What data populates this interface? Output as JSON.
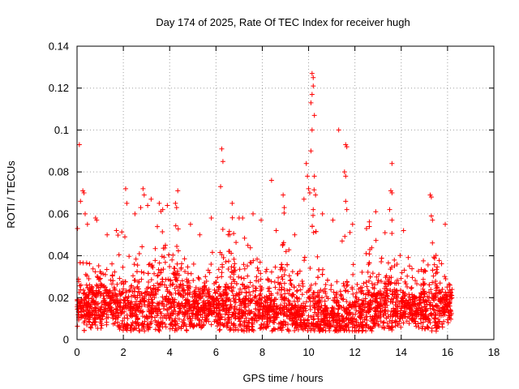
{
  "chart_data": {
    "type": "scatter",
    "title": "Day 174 of 2025, Rate Of TEC Index for receiver hugh",
    "xlabel": "GPS time / hours",
    "ylabel": "ROTI / TECUs",
    "xlim": [
      0,
      18
    ],
    "ylim": [
      0,
      0.14
    ],
    "xticks": [
      0,
      2,
      4,
      6,
      8,
      10,
      12,
      14,
      16,
      18
    ],
    "yticks": [
      0,
      0.02,
      0.04,
      0.06,
      0.08,
      0.1,
      0.12,
      0.14
    ],
    "xtick_labels": [
      "0",
      "2",
      "4",
      "6",
      "8",
      "10",
      "12",
      "14",
      "16",
      "18"
    ],
    "ytick_labels": [
      "0",
      "0.02",
      "0.04",
      "0.06",
      "0.08",
      "0.1",
      "0.12",
      "0.14"
    ],
    "grid": true,
    "marker": "+",
    "marker_color": "#ff0000",
    "data_range_x": [
      0,
      16.2
    ],
    "series": [
      {
        "name": "ROTI",
        "points": [
          [
            0.02,
            0.053
          ],
          [
            0.1,
            0.093
          ],
          [
            0.15,
            0.066
          ],
          [
            0.25,
            0.071
          ],
          [
            0.3,
            0.07
          ],
          [
            0.35,
            0.06
          ],
          [
            0.45,
            0.055
          ],
          [
            0.8,
            0.058
          ],
          [
            0.85,
            0.057
          ],
          [
            1.3,
            0.05
          ],
          [
            1.7,
            0.052
          ],
          [
            2.1,
            0.072
          ],
          [
            2.15,
            0.065
          ],
          [
            2.5,
            0.06
          ],
          [
            2.75,
            0.063
          ],
          [
            2.85,
            0.072
          ],
          [
            2.9,
            0.069
          ],
          [
            3.05,
            0.064
          ],
          [
            3.2,
            0.067
          ],
          [
            3.55,
            0.065
          ],
          [
            3.7,
            0.062
          ],
          [
            3.9,
            0.064
          ],
          [
            4.25,
            0.065
          ],
          [
            4.3,
            0.063
          ],
          [
            4.35,
            0.071
          ],
          [
            4.9,
            0.055
          ],
          [
            5.3,
            0.05
          ],
          [
            5.8,
            0.058
          ],
          [
            6.2,
            0.073
          ],
          [
            6.25,
            0.091
          ],
          [
            6.3,
            0.085
          ],
          [
            6.7,
            0.065
          ],
          [
            7.0,
            0.058
          ],
          [
            7.15,
            0.058
          ],
          [
            7.6,
            0.06
          ],
          [
            7.95,
            0.057
          ],
          [
            8.4,
            0.076
          ],
          [
            8.6,
            0.052
          ],
          [
            8.9,
            0.069
          ],
          [
            8.95,
            0.063
          ],
          [
            9.4,
            0.05
          ],
          [
            9.8,
            0.067
          ],
          [
            9.9,
            0.084
          ],
          [
            9.95,
            0.078
          ],
          [
            10.0,
            0.072
          ],
          [
            10.05,
            0.07
          ],
          [
            10.1,
            0.09
          ],
          [
            10.15,
            0.1
          ],
          [
            10.1,
            0.113
          ],
          [
            10.15,
            0.117
          ],
          [
            10.2,
            0.121
          ],
          [
            10.15,
            0.127
          ],
          [
            10.2,
            0.125
          ],
          [
            10.25,
            0.107
          ],
          [
            10.25,
            0.078
          ],
          [
            10.3,
            0.069
          ],
          [
            10.2,
            0.062
          ],
          [
            10.6,
            0.06
          ],
          [
            11.05,
            0.057
          ],
          [
            11.3,
            0.1
          ],
          [
            11.6,
            0.093
          ],
          [
            11.65,
            0.092
          ],
          [
            11.55,
            0.08
          ],
          [
            11.6,
            0.078
          ],
          [
            11.6,
            0.066
          ],
          [
            11.65,
            0.062
          ],
          [
            11.9,
            0.055
          ],
          [
            12.5,
            0.053
          ],
          [
            12.9,
            0.061
          ],
          [
            13.3,
            0.051
          ],
          [
            13.6,
            0.084
          ],
          [
            13.55,
            0.071
          ],
          [
            13.6,
            0.07
          ],
          [
            13.5,
            0.062
          ],
          [
            13.6,
            0.057
          ],
          [
            14.1,
            0.052
          ],
          [
            15.25,
            0.069
          ],
          [
            15.3,
            0.068
          ],
          [
            15.3,
            0.059
          ],
          [
            15.35,
            0.057
          ],
          [
            15.9,
            0.055
          ]
        ]
      }
    ]
  }
}
